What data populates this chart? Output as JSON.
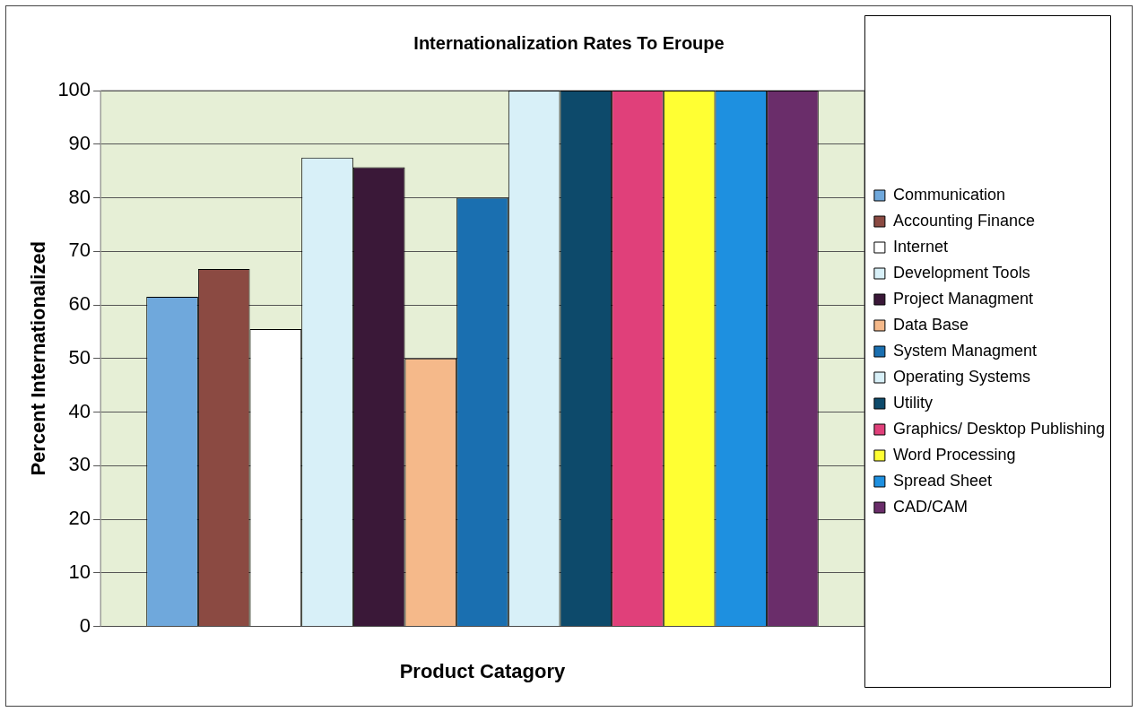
{
  "chart_data": {
    "type": "bar",
    "title": "Internationalization Rates To Eroupe",
    "xlabel": "Product Catagory",
    "ylabel": "Percent Internationalized",
    "categories": [
      null
    ],
    "series": [
      {
        "name": "Communication",
        "color": "#6fa8dc",
        "values": [
          61.5
        ]
      },
      {
        "name": "Accounting Finance",
        "color": "#8b4a42",
        "values": [
          66.7
        ]
      },
      {
        "name": "Internet",
        "color": "#ffffff",
        "values": [
          55.5
        ]
      },
      {
        "name": "Development Tools",
        "color": "#d8f0f8",
        "values": [
          87.5
        ]
      },
      {
        "name": "Project Managment",
        "color": "#3a1838",
        "values": [
          85.7
        ]
      },
      {
        "name": "Data Base",
        "color": "#f5b98a",
        "values": [
          50
        ]
      },
      {
        "name": "System Managment",
        "color": "#1a6fb0",
        "values": [
          80
        ]
      },
      {
        "name": "Operating Systems",
        "color": "#d8f0f8",
        "values": [
          100
        ]
      },
      {
        "name": "Utility",
        "color": "#0d4a6b",
        "values": [
          100
        ]
      },
      {
        "name": "Graphics/ Desktop Publishing",
        "color": "#e0407a",
        "values": [
          100
        ]
      },
      {
        "name": "Word Processing",
        "color": "#ffff33",
        "values": [
          100
        ]
      },
      {
        "name": "Spread Sheet",
        "color": "#1e90e0",
        "values": [
          100
        ]
      },
      {
        "name": "CAD/CAM",
        "color": "#6a2d6a",
        "values": [
          100
        ]
      }
    ],
    "ylim": [
      0,
      100
    ],
    "yticks": [
      0,
      10,
      20,
      30,
      40,
      50,
      60,
      70,
      80,
      90,
      100
    ],
    "grid": "y",
    "legend": "right",
    "tick_labels": "y"
  }
}
